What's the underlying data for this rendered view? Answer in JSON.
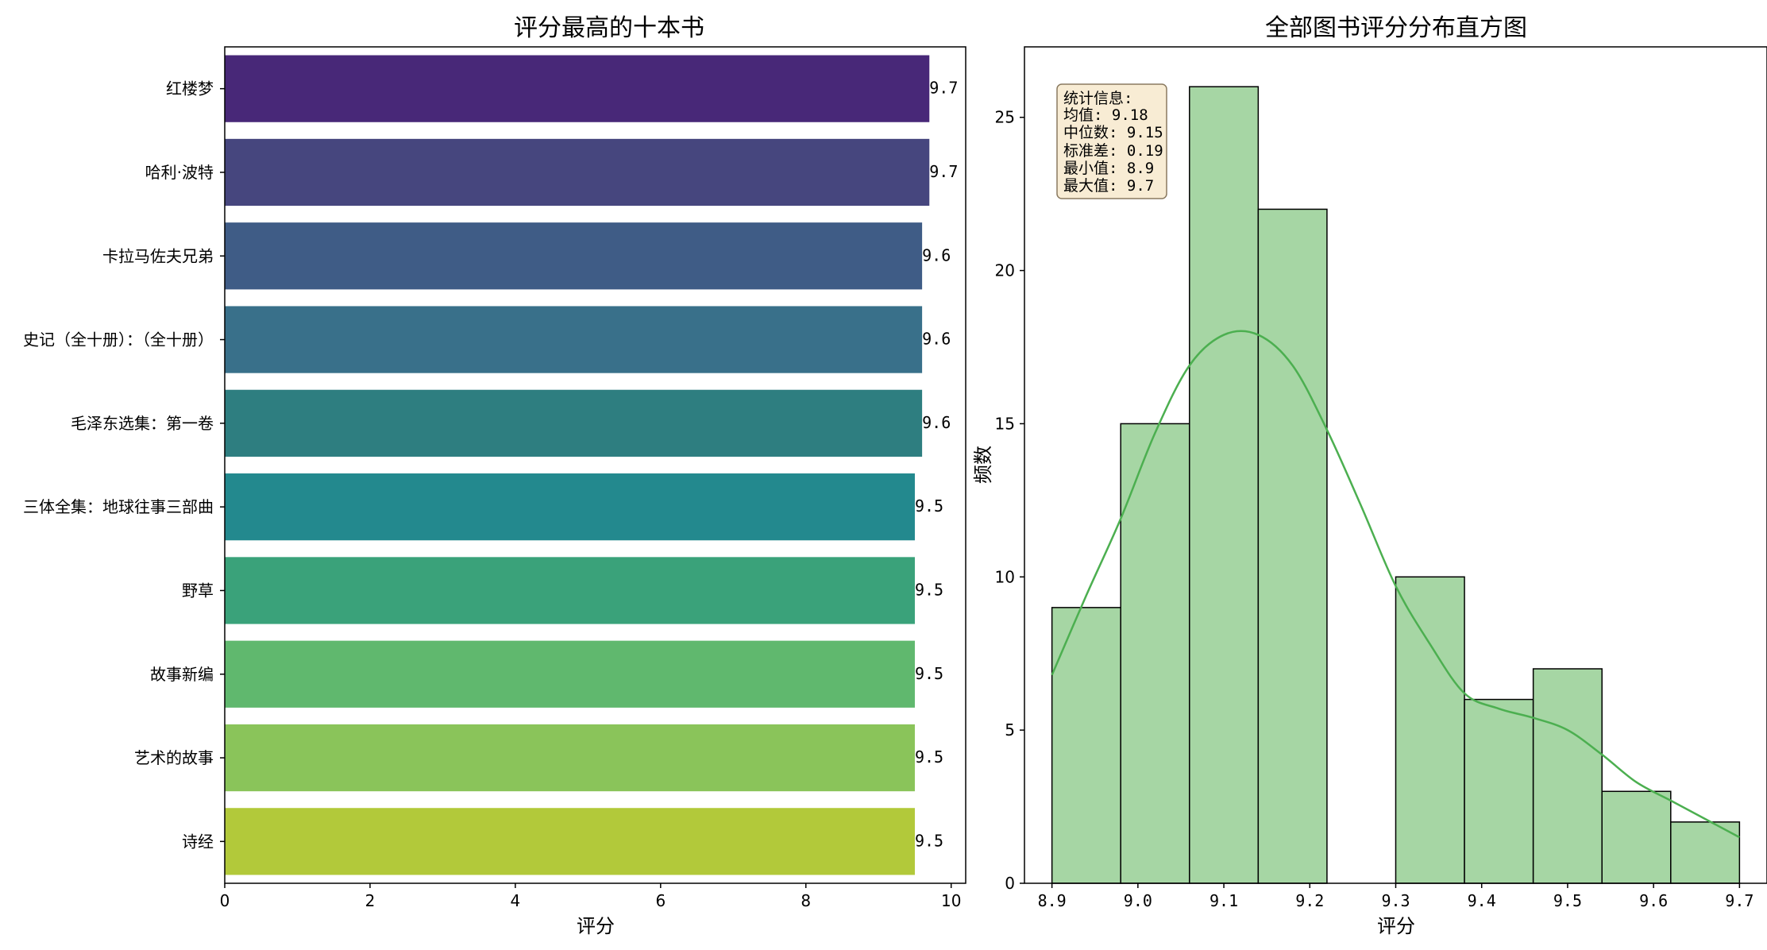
{
  "chart_data": [
    {
      "type": "bar",
      "orientation": "horizontal",
      "title": "评分最高的十本书",
      "xlabel": "评分",
      "ylabel": "",
      "xlim": [
        0,
        10.2
      ],
      "xticks": [
        "0",
        "2",
        "4",
        "6",
        "8",
        "10"
      ],
      "categories": [
        "红楼梦",
        "哈利·波特",
        "卡拉马佐夫兄弟",
        "史记（全十册）：（全十册）",
        "毛泽东选集：第一卷",
        "三体全集：地球往事三部曲",
        "野草",
        "故事新编",
        "艺术的故事",
        "诗经"
      ],
      "values": [
        9.7,
        9.7,
        9.6,
        9.6,
        9.6,
        9.5,
        9.5,
        9.5,
        9.5,
        9.5
      ],
      "value_labels": [
        "9.7",
        "9.7",
        "9.6",
        "9.6",
        "9.6",
        "9.5",
        "9.5",
        "9.5",
        "9.5",
        "9.5"
      ],
      "colors": [
        "#482878",
        "#46467e",
        "#3f5c86",
        "#39708a",
        "#2e7e80",
        "#23898e",
        "#3aa27a",
        "#60b86e",
        "#8ac45a",
        "#b2c93a"
      ],
      "grid": false,
      "legend": "none"
    },
    {
      "type": "histogram",
      "title": "全部图书评分分布直方图",
      "xlabel": "评分",
      "ylabel": "频数",
      "xlim": [
        8.868,
        9.732
      ],
      "ylim": [
        0,
        27.3
      ],
      "xticks": [
        "8.9",
        "9.0",
        "9.1",
        "9.2",
        "9.3",
        "9.4",
        "9.5",
        "9.6",
        "9.7"
      ],
      "yticks": [
        "0",
        "5",
        "10",
        "15",
        "20",
        "25"
      ],
      "bin_edges": [
        8.9,
        8.98,
        9.06,
        9.14,
        9.22,
        9.3,
        9.38,
        9.46,
        9.54,
        9.62,
        9.7
      ],
      "counts": [
        9,
        15,
        26,
        22,
        0,
        10,
        6,
        7,
        3,
        2
      ],
      "bar_color": "#a6d6a4",
      "kde": {
        "color": "#4caf50",
        "x": [
          8.9,
          8.94,
          8.98,
          9.02,
          9.06,
          9.1,
          9.14,
          9.18,
          9.22,
          9.26,
          9.3,
          9.34,
          9.38,
          9.42,
          9.46,
          9.5,
          9.54,
          9.58,
          9.62,
          9.66,
          9.7
        ],
        "y": [
          6.8,
          9.4,
          11.9,
          14.7,
          16.9,
          17.9,
          17.9,
          16.9,
          14.8,
          12.3,
          9.7,
          7.8,
          6.2,
          5.7,
          5.4,
          5.0,
          4.2,
          3.3,
          2.7,
          2.1,
          1.5
        ]
      },
      "stats_box": {
        "lines": [
          "统计信息:",
          "均值: 9.18",
          "中位数: 9.15",
          "标准差: 0.19",
          "最小值: 8.9",
          "最大值: 9.7"
        ],
        "background": "#f8ecd4",
        "position": "top-left"
      },
      "grid": false
    }
  ]
}
